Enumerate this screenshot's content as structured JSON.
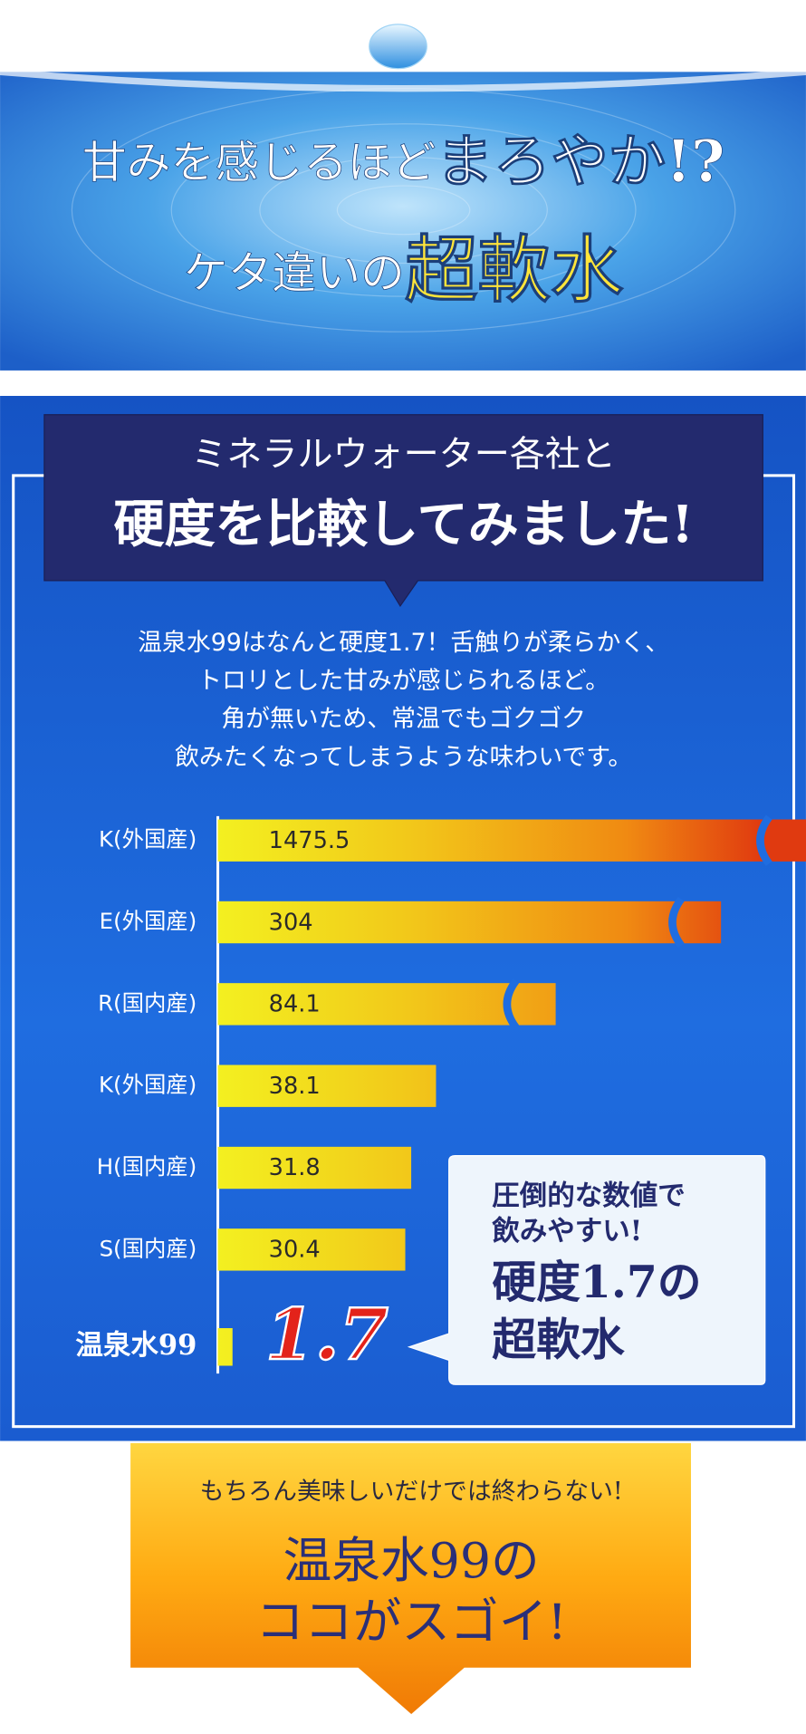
{
  "header": {
    "line1_small": "甘みを感じるほど",
    "line1_large": "まろやか!?",
    "line2_small": "ケタ違いの",
    "line2_large": "超軟水"
  },
  "section": {
    "heading1": "ミネラルウォーター各社と",
    "heading2": "硬度を比較してみました!",
    "description": [
      "温泉水99はなんと硬度1.7！舌触りが柔らかく、",
      "トロリとした甘みが感じられるほど。",
      "角が無いため、常温でもゴクゴク",
      "飲みたくなってしまうような味わいです。"
    ]
  },
  "chart_data": {
    "type": "bar",
    "orientation": "horizontal",
    "broken_axis": true,
    "categories": [
      "K(外国産)",
      "E(外国産)",
      "R(国内産)",
      "K(外国産)",
      "H(国内産)",
      "S(国内産)",
      "温泉水99"
    ],
    "values": [
      1475.5,
      304,
      84.1,
      38.1,
      31.8,
      30.4,
      1.7
    ]
  },
  "callout": {
    "line1": "圧倒的な数値で",
    "line2": "飲みやすい!",
    "line3": "硬度1.7の",
    "line4": "超軟水"
  },
  "footer": {
    "line1": "もちろん美味しいだけでは終わらない!",
    "line2": "温泉水99の",
    "line3": "ココがスゴイ!"
  }
}
